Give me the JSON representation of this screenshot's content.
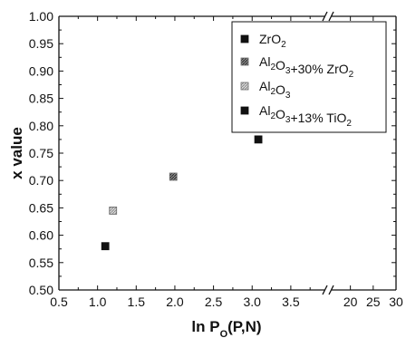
{
  "chart_data": {
    "type": "scatter",
    "title": "",
    "xlabel": "ln P",
    "xlabel_sub": "O",
    "xlabel_suffix": "(P,N)",
    "ylabel": "x value",
    "ylim": [
      0.5,
      1.0
    ],
    "yticks": [
      "0.50",
      "0.55",
      "0.60",
      "0.65",
      "0.70",
      "0.75",
      "0.80",
      "0.85",
      "0.90",
      "0.95",
      "1.00"
    ],
    "x_segments": [
      {
        "range": [
          0.5,
          3.9
        ],
        "ticks": [
          "0.5",
          "1.0",
          "1.5",
          "2.0",
          "2.5",
          "3.0",
          "3.5"
        ]
      },
      {
        "range": [
          16.5,
          30
        ],
        "ticks": [
          "20",
          "25",
          "30"
        ]
      }
    ],
    "axis_break": "//",
    "grid": false,
    "legend_position": "top-right",
    "series": [
      {
        "name": "ZrO2",
        "legend_parts": [
          [
            "ZrO",
            ""
          ],
          [
            "2",
            "sub"
          ]
        ],
        "color": "#111111",
        "fill": "solid",
        "points": [
          {
            "x": 1.1,
            "y": 0.58
          }
        ]
      },
      {
        "name": "Al2O3+30% ZrO2",
        "legend_parts": [
          [
            "Al",
            ""
          ],
          [
            "2",
            "sub"
          ],
          [
            "O",
            ""
          ],
          [
            "3",
            "sub"
          ],
          [
            "+30% ZrO",
            ""
          ],
          [
            "2",
            "sub"
          ]
        ],
        "color": "#555555",
        "fill": "hatch-dark",
        "points": [
          {
            "x": 1.98,
            "y": 0.707
          }
        ]
      },
      {
        "name": "Al2O3",
        "legend_parts": [
          [
            "Al",
            ""
          ],
          [
            "2",
            "sub"
          ],
          [
            "O",
            ""
          ],
          [
            "3",
            "sub"
          ]
        ],
        "color": "#9a9a9a",
        "fill": "hatch-light",
        "points": [
          {
            "x": 1.2,
            "y": 0.645
          }
        ]
      },
      {
        "name": "Al2O3+13% TiO2",
        "legend_parts": [
          [
            "Al",
            ""
          ],
          [
            "2",
            "sub"
          ],
          [
            "O",
            ""
          ],
          [
            "3",
            "sub"
          ],
          [
            "+13% TiO",
            ""
          ],
          [
            "2",
            "sub"
          ]
        ],
        "color": "#111111",
        "fill": "solid",
        "points": [
          {
            "x": 3.08,
            "y": 0.775
          }
        ]
      }
    ]
  }
}
